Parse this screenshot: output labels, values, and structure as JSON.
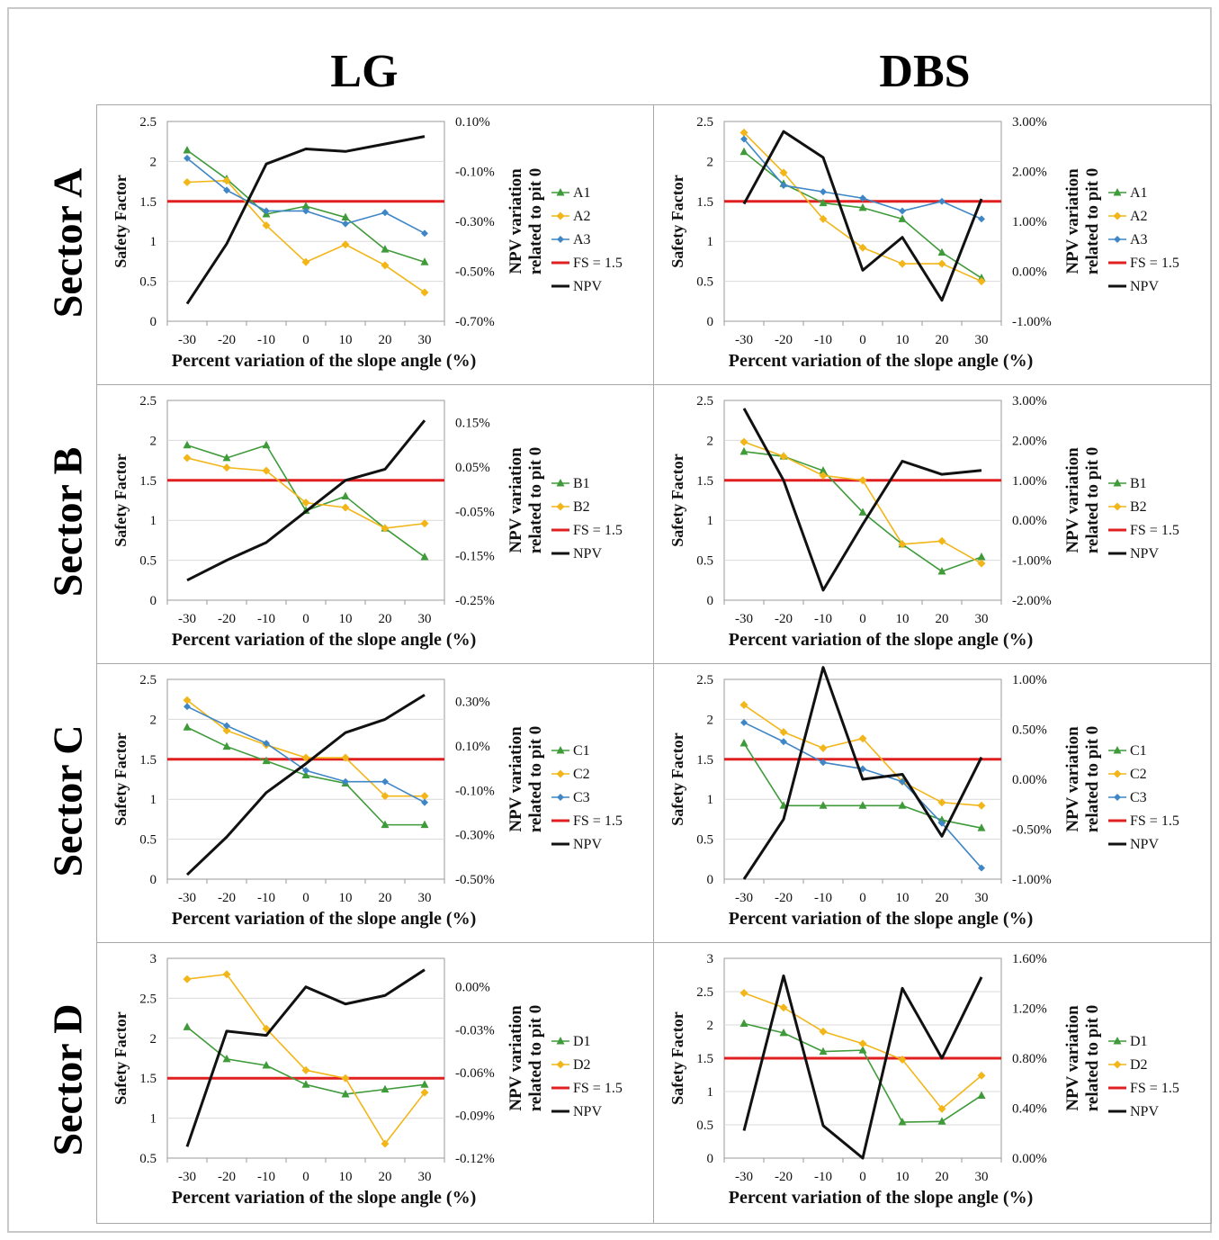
{
  "column_titles": [
    "LG",
    "DBS"
  ],
  "row_titles": [
    "Sector A",
    "Sector B",
    "Sector C",
    "Sector D"
  ],
  "colors": {
    "green": "#3f9b3a",
    "orange": "#f2b619",
    "blue": "#3f86c6",
    "red": "#e02020",
    "black": "#111111"
  },
  "chart_data": [
    {
      "panel": "Sector A - LG",
      "type": "line",
      "xlabel": "Percent variation of the slope angle (%)",
      "ylabel": "Safety Factor",
      "y2label": [
        "NPV variation",
        "related to pit 0"
      ],
      "categories": [
        "-30",
        "-20",
        "-10",
        "0",
        "10",
        "20",
        "30"
      ],
      "ylim": [
        0,
        2.5
      ],
      "yticks": [
        "0",
        "0.5",
        "1",
        "1.5",
        "2",
        "2.5"
      ],
      "y2lim": [
        -0.7,
        0.1
      ],
      "y2ticks": [
        "-0.70%",
        "-0.50%",
        "-0.30%",
        "-0.10%",
        "0.10%"
      ],
      "series": [
        {
          "name": "A1",
          "color": "green",
          "marker": "triangle",
          "values": [
            2.14,
            1.78,
            1.34,
            1.44,
            1.3,
            0.9,
            0.74
          ]
        },
        {
          "name": "A2",
          "color": "orange",
          "marker": "diamond",
          "values": [
            1.74,
            1.76,
            1.2,
            0.74,
            0.96,
            0.7,
            0.36
          ]
        },
        {
          "name": "A3",
          "color": "blue",
          "marker": "dot",
          "values": [
            2.04,
            1.64,
            1.38,
            1.38,
            1.22,
            1.36,
            1.1
          ]
        },
        {
          "name": "FS = 1.5",
          "color": "red",
          "marker": "none",
          "values": [
            1.5,
            1.5,
            1.5,
            1.5,
            1.5,
            1.5,
            1.5
          ]
        },
        {
          "name": "NPV",
          "color": "black",
          "marker": "none",
          "axis": "y2",
          "values": [
            -0.63,
            -0.39,
            -0.07,
            -0.01,
            -0.02,
            0.01,
            0.04
          ]
        }
      ]
    },
    {
      "panel": "Sector A - DBS",
      "type": "line",
      "xlabel": "Percent variation of the slope angle (%)",
      "ylabel": "Safety Factor",
      "y2label": [
        "NPV variation",
        "related to pit 0"
      ],
      "categories": [
        "-30",
        "-20",
        "-10",
        "0",
        "10",
        "20",
        "30"
      ],
      "ylim": [
        0,
        2.5
      ],
      "yticks": [
        "0",
        "0.5",
        "1",
        "1.5",
        "2",
        "2.5"
      ],
      "y2lim": [
        -1,
        3
      ],
      "y2ticks": [
        "-1.00%",
        "0.00%",
        "1.00%",
        "2.00%",
        "3.00%"
      ],
      "series": [
        {
          "name": "A1",
          "color": "green",
          "marker": "triangle",
          "values": [
            2.12,
            1.72,
            1.48,
            1.42,
            1.28,
            0.86,
            0.54
          ]
        },
        {
          "name": "A2",
          "color": "orange",
          "marker": "diamond",
          "values": [
            2.36,
            1.86,
            1.28,
            0.92,
            0.72,
            0.72,
            0.5
          ]
        },
        {
          "name": "A3",
          "color": "blue",
          "marker": "dot",
          "values": [
            2.28,
            1.7,
            1.62,
            1.54,
            1.38,
            1.5,
            1.28
          ]
        },
        {
          "name": "FS = 1.5",
          "color": "red",
          "marker": "none",
          "values": [
            1.5,
            1.5,
            1.5,
            1.5,
            1.5,
            1.5,
            1.5
          ]
        },
        {
          "name": "NPV",
          "color": "black",
          "marker": "none",
          "axis": "y2",
          "values": [
            1.35,
            2.8,
            2.28,
            0.02,
            0.68,
            -0.58,
            1.45
          ]
        }
      ]
    },
    {
      "panel": "Sector B - LG",
      "type": "line",
      "xlabel": "Percent variation of the slope angle (%)",
      "ylabel": "Safety Factor",
      "y2label": [
        "NPV variation",
        "related to pit 0"
      ],
      "categories": [
        "-30",
        "-20",
        "-10",
        "0",
        "10",
        "20",
        "30"
      ],
      "ylim": [
        0,
        2.5
      ],
      "yticks": [
        "0",
        "0.5",
        "1",
        "1.5",
        "2",
        "2.5"
      ],
      "y2lim": [
        -0.25,
        0.2
      ],
      "y2ticks": [
        "-0.25%",
        "-0.15%",
        "-0.05%",
        "0.05%",
        "0.15%"
      ],
      "series": [
        {
          "name": "B1",
          "color": "green",
          "marker": "triangle",
          "values": [
            1.94,
            1.78,
            1.94,
            1.12,
            1.3,
            0.9,
            0.54
          ]
        },
        {
          "name": "B2",
          "color": "orange",
          "marker": "diamond",
          "values": [
            1.78,
            1.66,
            1.62,
            1.22,
            1.16,
            0.9,
            0.96
          ]
        },
        {
          "name": "FS = 1.5",
          "color": "red",
          "marker": "none",
          "values": [
            1.5,
            1.5,
            1.5,
            1.5,
            1.5,
            1.5,
            1.5
          ]
        },
        {
          "name": "NPV",
          "color": "black",
          "marker": "none",
          "axis": "y2",
          "values": [
            -0.205,
            -0.16,
            -0.12,
            -0.05,
            0.02,
            0.045,
            0.155
          ]
        }
      ]
    },
    {
      "panel": "Sector B - DBS",
      "type": "line",
      "xlabel": "Percent variation of the slope angle (%)",
      "ylabel": "Safety Factor",
      "y2label": [
        "NPV variation",
        "related to pit 0"
      ],
      "categories": [
        "-30",
        "-20",
        "-10",
        "0",
        "10",
        "20",
        "30"
      ],
      "ylim": [
        0,
        2.5
      ],
      "yticks": [
        "0",
        "0.5",
        "1",
        "1.5",
        "2",
        "2.5"
      ],
      "y2lim": [
        -2,
        3
      ],
      "y2ticks": [
        "-2.00%",
        "-1.00%",
        "0.00%",
        "1.00%",
        "2.00%",
        "3.00%"
      ],
      "series": [
        {
          "name": "B1",
          "color": "green",
          "marker": "triangle",
          "values": [
            1.86,
            1.8,
            1.62,
            1.1,
            0.7,
            0.36,
            0.54
          ]
        },
        {
          "name": "B2",
          "color": "orange",
          "marker": "diamond",
          "values": [
            1.98,
            1.8,
            1.56,
            1.5,
            0.7,
            0.74,
            0.46
          ]
        },
        {
          "name": "FS = 1.5",
          "color": "red",
          "marker": "none",
          "values": [
            1.5,
            1.5,
            1.5,
            1.5,
            1.5,
            1.5,
            1.5
          ]
        },
        {
          "name": "NPV",
          "color": "black",
          "marker": "none",
          "axis": "y2",
          "values": [
            2.8,
            1.0,
            -1.75,
            -0.1,
            1.48,
            1.15,
            1.25
          ]
        }
      ]
    },
    {
      "panel": "Sector C - LG",
      "type": "line",
      "xlabel": "Percent variation of the slope angle (%)",
      "ylabel": "Safety Factor",
      "y2label": [
        "NPV variation",
        "related to pit 0"
      ],
      "categories": [
        "-30",
        "-20",
        "-10",
        "0",
        "10",
        "20",
        "30"
      ],
      "ylim": [
        0,
        2.5
      ],
      "yticks": [
        "0",
        "0.5",
        "1",
        "1.5",
        "2",
        "2.5"
      ],
      "y2lim": [
        -0.5,
        0.4
      ],
      "y2ticks": [
        "-0.50%",
        "-0.30%",
        "-0.10%",
        "0.10%",
        "0.30%"
      ],
      "series": [
        {
          "name": "C1",
          "color": "green",
          "marker": "triangle",
          "values": [
            1.9,
            1.66,
            1.48,
            1.3,
            1.2,
            0.68,
            0.68
          ]
        },
        {
          "name": "C2",
          "color": "orange",
          "marker": "diamond",
          "values": [
            2.24,
            1.86,
            1.68,
            1.52,
            1.52,
            1.04,
            1.04
          ]
        },
        {
          "name": "C3",
          "color": "blue",
          "marker": "dot",
          "values": [
            2.16,
            1.92,
            1.7,
            1.36,
            1.22,
            1.22,
            0.96
          ]
        },
        {
          "name": "FS = 1.5",
          "color": "red",
          "marker": "none",
          "values": [
            1.5,
            1.5,
            1.5,
            1.5,
            1.5,
            1.5,
            1.5
          ]
        },
        {
          "name": "NPV",
          "color": "black",
          "marker": "none",
          "axis": "y2",
          "values": [
            -0.48,
            -0.31,
            -0.11,
            0.02,
            0.16,
            0.22,
            0.33
          ]
        }
      ]
    },
    {
      "panel": "Sector C - DBS",
      "type": "line",
      "xlabel": "Percent variation of the slope angle (%)",
      "ylabel": "Safety Factor",
      "y2label": [
        "NPV variation",
        "related to pit 0"
      ],
      "categories": [
        "-30",
        "-20",
        "-10",
        "0",
        "10",
        "20",
        "30"
      ],
      "ylim": [
        0,
        2.5
      ],
      "yticks": [
        "0",
        "0.5",
        "1",
        "1.5",
        "2",
        "2.5"
      ],
      "y2lim": [
        -1,
        1
      ],
      "y2ticks": [
        "-1.00%",
        "-0.50%",
        "0.00%",
        "0.50%",
        "1.00%"
      ],
      "series": [
        {
          "name": "C1",
          "color": "green",
          "marker": "triangle",
          "values": [
            1.7,
            0.92,
            0.92,
            0.92,
            0.92,
            0.74,
            0.64
          ]
        },
        {
          "name": "C2",
          "color": "orange",
          "marker": "diamond",
          "values": [
            2.18,
            1.84,
            1.64,
            1.76,
            1.22,
            0.96,
            0.92
          ]
        },
        {
          "name": "C3",
          "color": "blue",
          "marker": "dot",
          "values": [
            1.96,
            1.72,
            1.46,
            1.38,
            1.22,
            0.7,
            0.14
          ]
        },
        {
          "name": "FS = 1.5",
          "color": "red",
          "marker": "none",
          "values": [
            1.5,
            1.5,
            1.5,
            1.5,
            1.5,
            1.5,
            1.5
          ]
        },
        {
          "name": "NPV",
          "color": "black",
          "marker": "none",
          "axis": "y2",
          "values": [
            -1.0,
            -0.4,
            1.12,
            0.0,
            0.05,
            -0.57,
            0.22
          ]
        }
      ]
    },
    {
      "panel": "Sector D - LG",
      "type": "line",
      "xlabel": "Percent variation of the slope angle (%)",
      "ylabel": "Safety Factor",
      "y2label": [
        "NPV variation",
        "related to pit 0"
      ],
      "categories": [
        "-30",
        "-20",
        "-10",
        "0",
        "10",
        "20",
        "30"
      ],
      "ylim": [
        0.5,
        3
      ],
      "yticks": [
        "0.5",
        "1",
        "1.5",
        "2",
        "2.5",
        "3"
      ],
      "y2lim": [
        -0.12,
        0.02
      ],
      "y2ticks": [
        "-0.12%",
        "-0.09%",
        "-0.06%",
        "-0.03%",
        "0.00%"
      ],
      "series": [
        {
          "name": "D1",
          "color": "green",
          "marker": "triangle",
          "values": [
            2.14,
            1.74,
            1.66,
            1.42,
            1.3,
            1.36,
            1.42
          ]
        },
        {
          "name": "D2",
          "color": "orange",
          "marker": "diamond",
          "values": [
            2.74,
            2.8,
            2.12,
            1.6,
            1.5,
            0.68,
            1.32
          ]
        },
        {
          "name": "FS = 1.5",
          "color": "red",
          "marker": "none",
          "values": [
            1.5,
            1.5,
            1.5,
            1.5,
            1.5,
            1.5,
            1.5
          ]
        },
        {
          "name": "NPV",
          "color": "black",
          "marker": "none",
          "axis": "y2",
          "values": [
            -0.112,
            -0.031,
            -0.034,
            0.0,
            -0.012,
            -0.006,
            0.012
          ]
        }
      ]
    },
    {
      "panel": "Sector D - DBS",
      "type": "line",
      "xlabel": "Percent variation of the slope angle (%)",
      "ylabel": "Safety Factor",
      "y2label": [
        "NPV variation",
        "related to pit 0"
      ],
      "categories": [
        "-30",
        "-20",
        "-10",
        "0",
        "10",
        "20",
        "30"
      ],
      "ylim": [
        0,
        3
      ],
      "yticks": [
        "0",
        "0.5",
        "1",
        "1.5",
        "2",
        "2.5",
        "3"
      ],
      "y2lim": [
        0,
        1.6
      ],
      "y2ticks": [
        "0.00%",
        "0.40%",
        "0.80%",
        "1.20%",
        "1.60%"
      ],
      "series": [
        {
          "name": "D1",
          "color": "green",
          "marker": "triangle",
          "values": [
            2.02,
            1.88,
            1.6,
            1.62,
            0.54,
            0.55,
            0.94
          ]
        },
        {
          "name": "D2",
          "color": "orange",
          "marker": "diamond",
          "values": [
            2.48,
            2.26,
            1.9,
            1.72,
            1.48,
            0.74,
            1.24
          ]
        },
        {
          "name": "FS = 1.5",
          "color": "red",
          "marker": "none",
          "values": [
            1.5,
            1.5,
            1.5,
            1.5,
            1.5,
            1.5,
            1.5
          ]
        },
        {
          "name": "NPV",
          "color": "black",
          "marker": "none",
          "axis": "y2",
          "values": [
            0.22,
            1.46,
            0.26,
            0.0,
            1.36,
            0.8,
            1.45
          ]
        }
      ]
    }
  ]
}
